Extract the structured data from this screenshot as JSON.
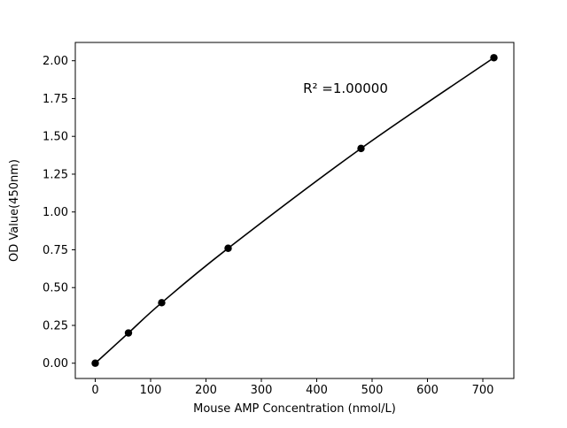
{
  "figure": {
    "background": "#ffffff",
    "foreground": "#000000"
  },
  "chart_data": {
    "type": "line",
    "title": "",
    "xlabel": "Mouse AMP Concentration (nmol/L)",
    "ylabel": "OD Value(450nm)",
    "x": [
      0,
      60,
      120,
      240,
      480,
      720
    ],
    "y": [
      0.0,
      0.2,
      0.4,
      0.76,
      1.42,
      2.02
    ],
    "annotation": "R² =1.00000",
    "xlim": [
      -36,
      756
    ],
    "ylim": [
      -0.101,
      2.121
    ],
    "xticks": [
      "0",
      "100",
      "200",
      "300",
      "400",
      "500",
      "600",
      "700"
    ],
    "yticks": [
      "0.00",
      "0.25",
      "0.50",
      "0.75",
      "1.00",
      "1.25",
      "1.50",
      "1.75",
      "2.00"
    ],
    "grid": false,
    "legend": "none",
    "line_color": "#000000",
    "marker": "circle",
    "marker_color": "#000000"
  }
}
